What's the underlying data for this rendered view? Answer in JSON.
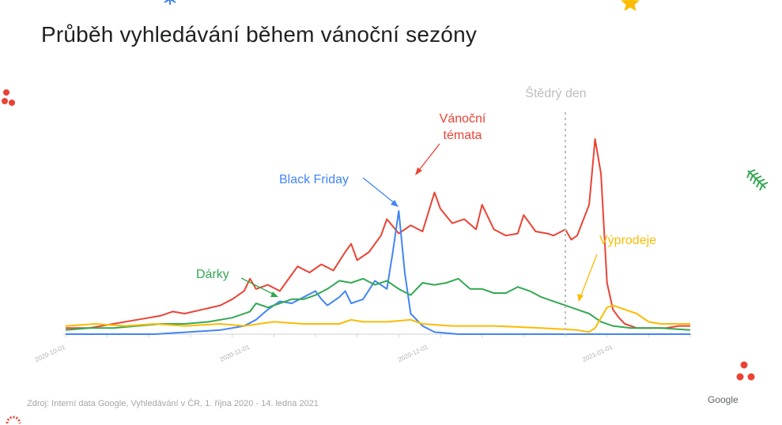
{
  "slide": {
    "title": "Průběh vyhledávání během vánoční sezóny",
    "source": "Zdroj: Interní data Google, Vyhledávání v ČR, 1. října 2020 - 14. ledna 2021",
    "brand": "Google"
  },
  "decorations": {
    "snowflake_color": "#4285F4",
    "star_color": "#FBBC04",
    "berry_color": "#EA4335",
    "branch_color": "#34A853"
  },
  "chart_data": {
    "type": "line",
    "title": "",
    "xlabel": "",
    "ylabel": "",
    "x_start": "2020-10-01",
    "x_end": "2021-01-14",
    "xlim": [
      0,
      105
    ],
    "ylim": [
      0,
      100
    ],
    "x_ticks": [
      {
        "day": 0,
        "label": "2020-10-01"
      },
      {
        "day": 31,
        "label": "2020-11-01"
      },
      {
        "day": 61,
        "label": "2020-12-01"
      },
      {
        "day": 92,
        "label": "2021-01-01"
      }
    ],
    "series": [
      {
        "name": "Vánoční témata",
        "color": "#EA4335",
        "points": [
          [
            0,
            3
          ],
          [
            4,
            3
          ],
          [
            8,
            5
          ],
          [
            12,
            7
          ],
          [
            16,
            9
          ],
          [
            18,
            11
          ],
          [
            20,
            10
          ],
          [
            23,
            12
          ],
          [
            26,
            14
          ],
          [
            28,
            17
          ],
          [
            30,
            21
          ],
          [
            31,
            27
          ],
          [
            32,
            22
          ],
          [
            34,
            24
          ],
          [
            36,
            21
          ],
          [
            37,
            25
          ],
          [
            39,
            33
          ],
          [
            41,
            30
          ],
          [
            43,
            34
          ],
          [
            45,
            31
          ],
          [
            47,
            40
          ],
          [
            48,
            44
          ],
          [
            49,
            36
          ],
          [
            51,
            40
          ],
          [
            53,
            48
          ],
          [
            54,
            56
          ],
          [
            56,
            49
          ],
          [
            58,
            53
          ],
          [
            60,
            50
          ],
          [
            62,
            69
          ],
          [
            63,
            61
          ],
          [
            65,
            54
          ],
          [
            67,
            56
          ],
          [
            69,
            51
          ],
          [
            70,
            63
          ],
          [
            72,
            51
          ],
          [
            74,
            48
          ],
          [
            76,
            49
          ],
          [
            77,
            58
          ],
          [
            79,
            50
          ],
          [
            81,
            49
          ],
          [
            82,
            48
          ],
          [
            84,
            51
          ],
          [
            85,
            46
          ],
          [
            86,
            48
          ],
          [
            88,
            63
          ],
          [
            89,
            95
          ],
          [
            90,
            78
          ],
          [
            91,
            25
          ],
          [
            92,
            12
          ],
          [
            93,
            8
          ],
          [
            94,
            5
          ],
          [
            96,
            3
          ],
          [
            99,
            3
          ],
          [
            101,
            3
          ],
          [
            103,
            4
          ],
          [
            105,
            4
          ]
        ]
      },
      {
        "name": "Black Friday",
        "color": "#4285F4",
        "points": [
          [
            0,
            0
          ],
          [
            15,
            0
          ],
          [
            26,
            2
          ],
          [
            30,
            4
          ],
          [
            32,
            7
          ],
          [
            34,
            12
          ],
          [
            36,
            16
          ],
          [
            38,
            15
          ],
          [
            40,
            18
          ],
          [
            42,
            21
          ],
          [
            43,
            17
          ],
          [
            44,
            14
          ],
          [
            46,
            18
          ],
          [
            47,
            21
          ],
          [
            48,
            15
          ],
          [
            50,
            17
          ],
          [
            52,
            26
          ],
          [
            54,
            22
          ],
          [
            55,
            40
          ],
          [
            56,
            60
          ],
          [
            57,
            30
          ],
          [
            58,
            10
          ],
          [
            60,
            4
          ],
          [
            62,
            1
          ],
          [
            66,
            0
          ],
          [
            105,
            0
          ]
        ]
      },
      {
        "name": "Dárky",
        "color": "#34A853",
        "points": [
          [
            0,
            2
          ],
          [
            4,
            3
          ],
          [
            8,
            3
          ],
          [
            12,
            4
          ],
          [
            16,
            5
          ],
          [
            20,
            5
          ],
          [
            24,
            6
          ],
          [
            28,
            8
          ],
          [
            31,
            11
          ],
          [
            32,
            15
          ],
          [
            34,
            13
          ],
          [
            36,
            15
          ],
          [
            38,
            17
          ],
          [
            40,
            17
          ],
          [
            42,
            19
          ],
          [
            44,
            22
          ],
          [
            46,
            26
          ],
          [
            48,
            25
          ],
          [
            50,
            27
          ],
          [
            52,
            24
          ],
          [
            54,
            26
          ],
          [
            56,
            22
          ],
          [
            58,
            19
          ],
          [
            60,
            25
          ],
          [
            62,
            24
          ],
          [
            64,
            25
          ],
          [
            66,
            27
          ],
          [
            68,
            22
          ],
          [
            70,
            22
          ],
          [
            72,
            20
          ],
          [
            74,
            20
          ],
          [
            76,
            23
          ],
          [
            78,
            21
          ],
          [
            80,
            18
          ],
          [
            82,
            16
          ],
          [
            84,
            14
          ],
          [
            86,
            12
          ],
          [
            88,
            10
          ],
          [
            90,
            6
          ],
          [
            92,
            4
          ],
          [
            95,
            3
          ],
          [
            100,
            3
          ],
          [
            105,
            2
          ]
        ]
      },
      {
        "name": "Výprodeje",
        "color": "#FBBC04",
        "points": [
          [
            0,
            4
          ],
          [
            5,
            5
          ],
          [
            10,
            4
          ],
          [
            15,
            5
          ],
          [
            20,
            4
          ],
          [
            26,
            5
          ],
          [
            30,
            4
          ],
          [
            35,
            6
          ],
          [
            40,
            5
          ],
          [
            46,
            5
          ],
          [
            48,
            7
          ],
          [
            50,
            6
          ],
          [
            54,
            6
          ],
          [
            58,
            7
          ],
          [
            60,
            5
          ],
          [
            65,
            4
          ],
          [
            72,
            4
          ],
          [
            80,
            3
          ],
          [
            86,
            2
          ],
          [
            88,
            1
          ],
          [
            89,
            3
          ],
          [
            90,
            8
          ],
          [
            91,
            13
          ],
          [
            92,
            14
          ],
          [
            94,
            12
          ],
          [
            96,
            10
          ],
          [
            98,
            6
          ],
          [
            100,
            5
          ],
          [
            103,
            5
          ],
          [
            105,
            5
          ]
        ]
      }
    ],
    "annotations": [
      {
        "label": "Štědrý den",
        "day": 84,
        "color": "#BDBDBD"
      },
      {
        "lines": [
          "Vánoční",
          "témata"
        ],
        "color": "#EA4335"
      },
      {
        "label": "Black Friday",
        "color": "#4285F4"
      },
      {
        "label": "Dárky",
        "color": "#34A853"
      },
      {
        "label": "Výprodeje",
        "color": "#FBBC04"
      }
    ]
  }
}
